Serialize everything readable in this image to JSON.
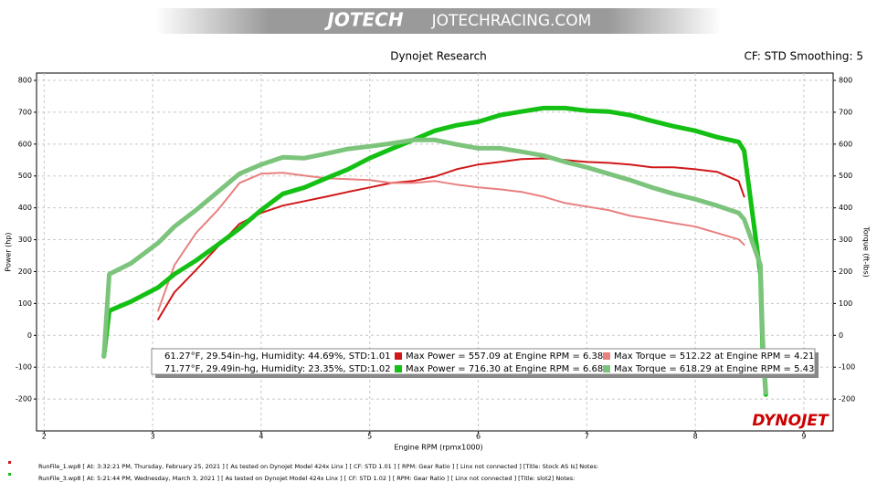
{
  "header": {
    "logo": "JOTECH",
    "site": "JOTECHRACING.COM"
  },
  "chart_data": {
    "type": "line",
    "title": "Dynojet Research",
    "subtitle": "CF: STD Smoothing: 5",
    "x_label": "Engine RPM (rpmx1000)",
    "y_label": "Power (hp)",
    "y2_label": "Torque (ft-lbs)",
    "watermark": "DYNOJET",
    "x": [
      2.55,
      2.6,
      2.8,
      3.05,
      3.2,
      3.4,
      3.6,
      3.8,
      4.0,
      4.2,
      4.4,
      4.6,
      4.8,
      5.0,
      5.2,
      5.4,
      5.6,
      5.8,
      6.0,
      6.2,
      6.4,
      6.6,
      6.8,
      7.0,
      7.2,
      7.4,
      7.6,
      7.8,
      8.0,
      8.2,
      8.4,
      8.45,
      8.6,
      8.62,
      8.65
    ],
    "xlim": [
      1.93,
      9.27
    ],
    "xticks": [
      2,
      3,
      4,
      5,
      6,
      7,
      8,
      9
    ],
    "ylim": [
      -300,
      823
    ],
    "yticks": [
      -200,
      -100,
      0,
      100,
      200,
      300,
      400,
      500,
      600,
      700,
      800
    ],
    "y2lim": [
      -300,
      823
    ],
    "y2ticks": [
      -200,
      -100,
      0,
      100,
      200,
      300,
      400,
      500,
      600,
      700,
      800
    ],
    "grid": true,
    "conditions": [
      "61.27°F, 29.54in-hg, Humidity: 44.69%, STD:1.01",
      "71.77°F, 29.49in-hg, Humidity: 23.35%, STD:1.02"
    ],
    "series": [
      {
        "name": "Max Power = 557.09 at Engine RPM = 6.38",
        "color": "#d01818",
        "width": 2,
        "values": [
          null,
          null,
          null,
          50,
          135,
          205,
          278,
          350,
          384,
          407,
          421,
          435,
          450,
          464,
          478,
          484,
          498,
          521,
          536,
          544,
          553,
          555,
          550,
          544,
          541,
          536,
          527,
          527,
          521,
          513,
          484,
          435,
          null,
          null,
          null
        ]
      },
      {
        "name": "Max Torque = 512.22 at Engine RPM = 4.21",
        "color": "#e98080",
        "width": 2,
        "axis": "y2",
        "values": [
          null,
          null,
          null,
          77,
          220,
          321,
          393,
          478,
          507,
          510,
          501,
          493,
          490,
          487,
          478,
          478,
          484,
          473,
          464,
          458,
          450,
          435,
          415,
          404,
          393,
          375,
          364,
          352,
          341,
          321,
          301,
          284,
          null,
          null,
          null
        ]
      },
      {
        "name": "Max Power = 716.30 at Engine RPM = 6.68",
        "color": "#14c014",
        "width": 5,
        "values": [
          -66,
          77,
          106,
          150,
          192,
          235,
          284,
          335,
          393,
          444,
          464,
          493,
          521,
          556,
          585,
          613,
          642,
          659,
          670,
          691,
          702,
          713,
          713,
          705,
          702,
          691,
          673,
          656,
          642,
          622,
          607,
          579,
          192,
          -37,
          -186
        ]
      },
      {
        "name": "Max Torque = 618.29 at Engine RPM = 5.43",
        "color": "#7cc47c",
        "width": 5,
        "axis": "y2",
        "values": [
          -66,
          192,
          226,
          290,
          341,
          393,
          450,
          507,
          536,
          559,
          556,
          570,
          585,
          593,
          602,
          613,
          613,
          599,
          587,
          587,
          576,
          564,
          544,
          527,
          507,
          487,
          464,
          444,
          427,
          407,
          384,
          364,
          221,
          -9,
          -180
        ]
      }
    ]
  },
  "footer": [
    {
      "color": "#d01818",
      "text": "RunFile_1.wp8 [ At: 3:32:21 PM, Thursday, February 25, 2021 ] [ As tested on Dynojet Model 424x Linx ] [ CF: STD 1.01 ] [ RPM: Gear Ratio ] [ Linx not connected ] [Title: Stock AS Is]  Notes:"
    },
    {
      "color": "#14c014",
      "text": "RunFile_3.wp8 [ At: 5:21:44 PM, Wednesday, March 3, 2021 ] [ As tested on Dynojet Model 424x Linx ] [ CF: STD 1.02 ] [ RPM: Gear Ratio ] [ Linx not connected ] [Title: slot2]  Notes:"
    }
  ]
}
